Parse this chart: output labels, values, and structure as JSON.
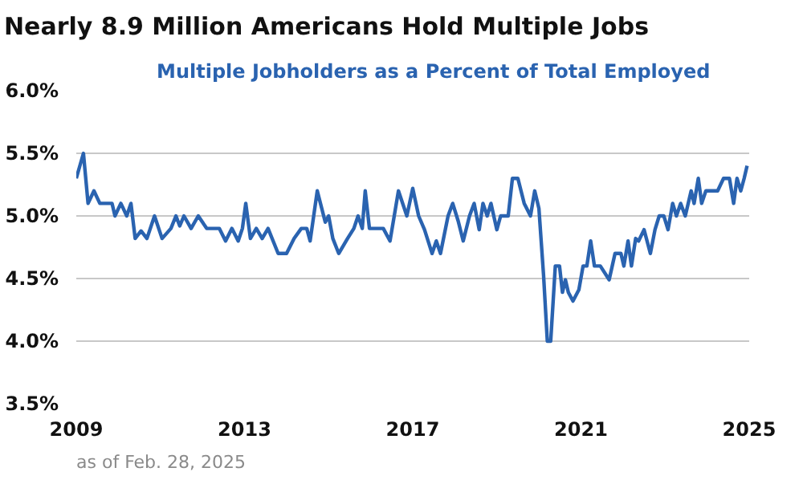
{
  "chart_data": {
    "type": "line",
    "title": "Nearly 8.9 Million Americans Hold Multiple Jobs",
    "subtitle": "Multiple Jobholders as a Percent of Total Employed",
    "annotations": [
      "as of Feb. 28, 2025"
    ],
    "xlim": [
      2009,
      2025
    ],
    "xticks": [
      2009,
      2013,
      2017,
      2021,
      2025
    ],
    "ylim": [
      3.5,
      6.0
    ],
    "yticks": [
      {
        "value": 3.5,
        "label": "3.5%"
      },
      {
        "value": 4.0,
        "label": "4.0%"
      },
      {
        "value": 4.5,
        "label": "4.5%"
      },
      {
        "value": 5.0,
        "label": "5.0%"
      },
      {
        "value": 5.5,
        "label": "5.5%"
      },
      {
        "value": 6.0,
        "label": "6.0%"
      }
    ],
    "grid": "y",
    "marker": "none",
    "line_style": "solid",
    "series": [
      {
        "color": "#2a63b0",
        "x": [
          2009.0,
          2009.17,
          2009.28,
          2009.42,
          2009.56,
          2009.85,
          2009.92,
          2010.06,
          2010.2,
          2010.3,
          2010.4,
          2010.54,
          2010.68,
          2010.86,
          2011.04,
          2011.25,
          2011.37,
          2011.46,
          2011.56,
          2011.73,
          2011.9,
          2012.1,
          2012.4,
          2012.55,
          2012.7,
          2012.85,
          2012.95,
          2013.03,
          2013.14,
          2013.28,
          2013.42,
          2013.56,
          2013.8,
          2014.0,
          2014.18,
          2014.35,
          2014.48,
          2014.56,
          2014.73,
          2014.92,
          2015.0,
          2015.1,
          2015.24,
          2015.45,
          2015.6,
          2015.7,
          2015.8,
          2015.87,
          2015.97,
          2016.3,
          2016.46,
          2016.66,
          2016.86,
          2017.0,
          2017.14,
          2017.28,
          2017.46,
          2017.56,
          2017.66,
          2017.84,
          2017.95,
          2018.08,
          2018.2,
          2018.35,
          2018.46,
          2018.58,
          2018.67,
          2018.77,
          2018.86,
          2019.0,
          2019.09,
          2019.27,
          2019.37,
          2019.5,
          2019.65,
          2019.8,
          2019.9,
          2020.0,
          2020.11,
          2020.2,
          2020.28,
          2020.39,
          2020.49,
          2020.56,
          2020.63,
          2020.7,
          2020.81,
          2020.95,
          2021.05,
          2021.14,
          2021.23,
          2021.32,
          2021.46,
          2021.67,
          2021.81,
          2021.95,
          2022.02,
          2022.12,
          2022.2,
          2022.3,
          2022.37,
          2022.5,
          2022.65,
          2022.76,
          2022.86,
          2022.97,
          2023.07,
          2023.18,
          2023.27,
          2023.37,
          2023.48,
          2023.62,
          2023.69,
          2023.79,
          2023.87,
          2023.97,
          2024.11,
          2024.25,
          2024.39,
          2024.53,
          2024.63,
          2024.71,
          2024.8,
          2024.88,
          2024.95
        ],
        "values": [
          5.3,
          5.5,
          5.1,
          5.2,
          5.1,
          5.1,
          5.0,
          5.1,
          5.0,
          5.1,
          4.82,
          4.88,
          4.82,
          5.0,
          4.82,
          4.9,
          5.0,
          4.92,
          5.0,
          4.9,
          5.0,
          4.9,
          4.9,
          4.8,
          4.9,
          4.8,
          4.9,
          5.1,
          4.82,
          4.9,
          4.82,
          4.9,
          4.7,
          4.7,
          4.82,
          4.9,
          4.9,
          4.8,
          5.2,
          4.95,
          5.0,
          4.82,
          4.7,
          4.82,
          4.9,
          5.0,
          4.9,
          5.2,
          4.9,
          4.9,
          4.8,
          5.2,
          5.0,
          5.22,
          5.0,
          4.89,
          4.7,
          4.8,
          4.7,
          5.0,
          5.1,
          4.96,
          4.8,
          5.0,
          5.1,
          4.89,
          5.1,
          5.0,
          5.1,
          4.89,
          5.0,
          5.0,
          5.3,
          5.3,
          5.1,
          5.0,
          5.2,
          5.06,
          4.53,
          4.0,
          4.0,
          4.6,
          4.6,
          4.39,
          4.49,
          4.39,
          4.32,
          4.41,
          4.6,
          4.6,
          4.8,
          4.6,
          4.6,
          4.49,
          4.7,
          4.7,
          4.6,
          4.8,
          4.6,
          4.82,
          4.8,
          4.89,
          4.7,
          4.89,
          5.0,
          5.0,
          4.89,
          5.1,
          5.0,
          5.1,
          5.0,
          5.2,
          5.1,
          5.3,
          5.1,
          5.2,
          5.2,
          5.2,
          5.3,
          5.3,
          5.1,
          5.3,
          5.2,
          5.3,
          5.4
        ]
      }
    ]
  }
}
